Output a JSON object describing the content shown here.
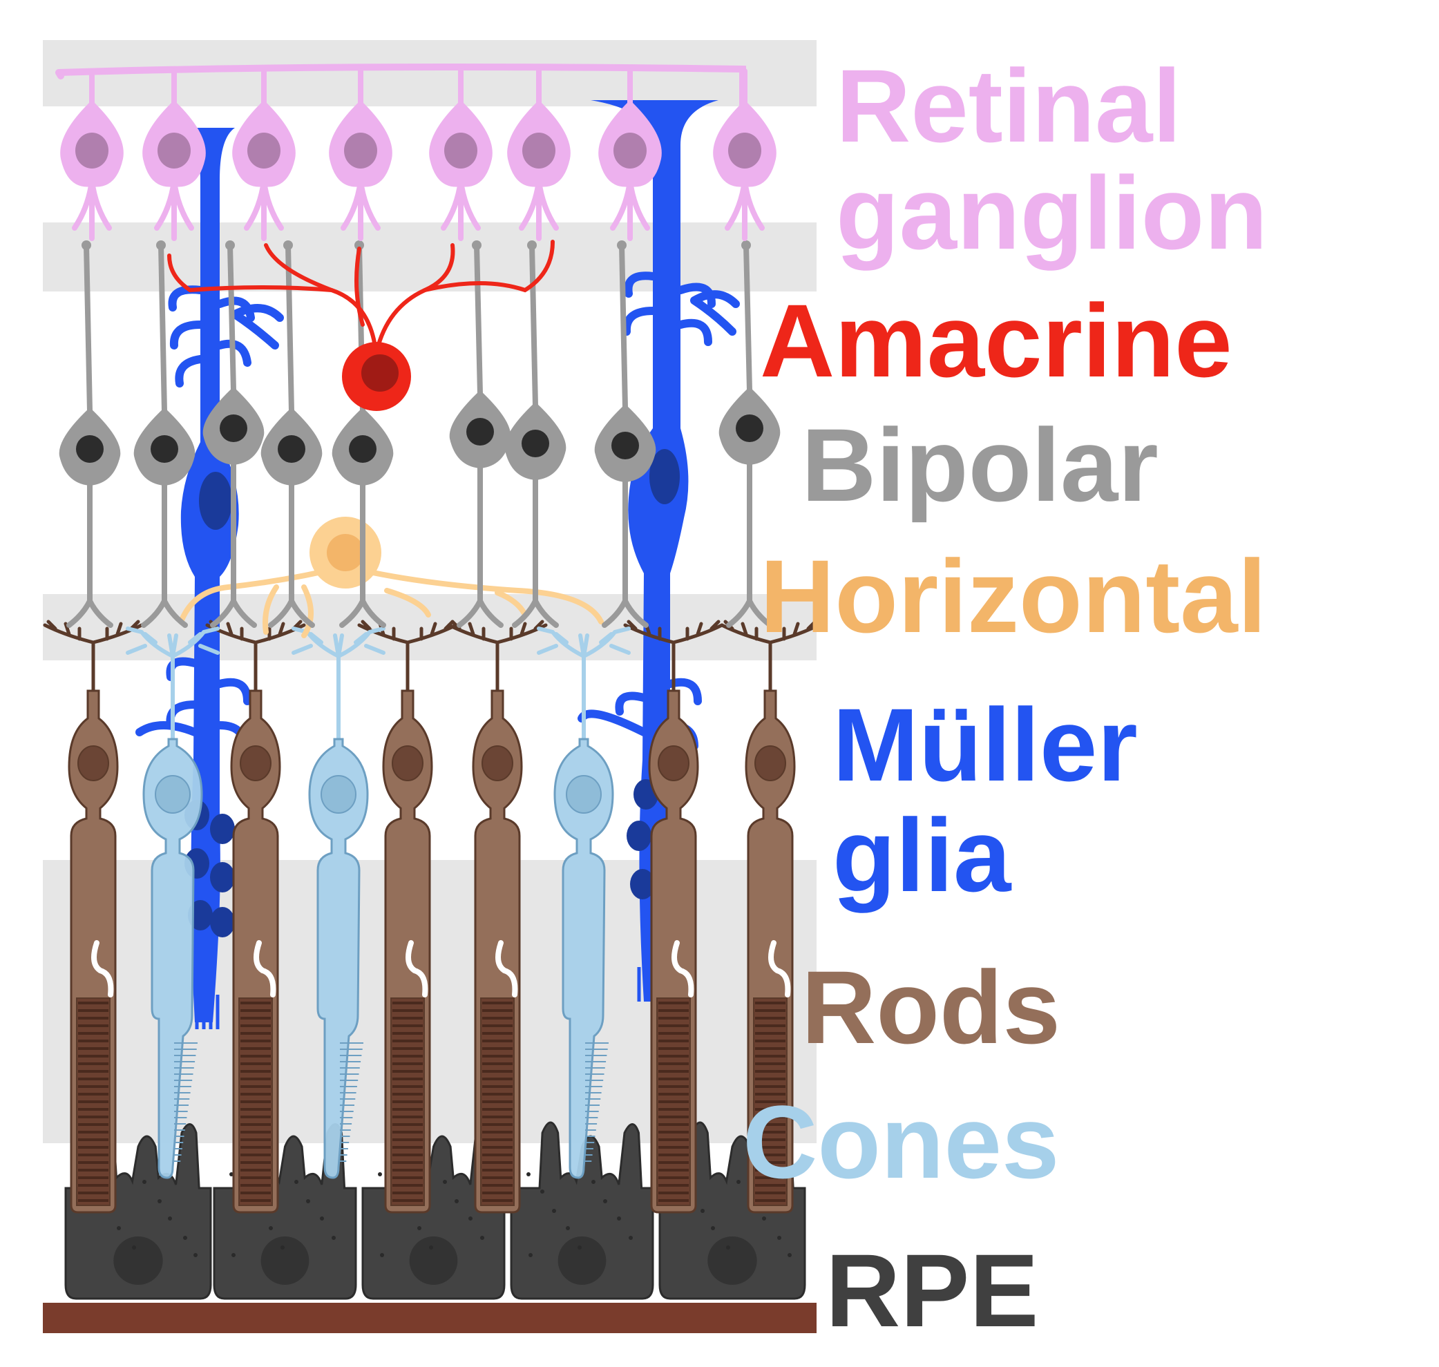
{
  "labels": {
    "retinal_line1": "Retinal",
    "retinal_line2": "ganglion",
    "amacrine": "Amacrine",
    "bipolar": "Bipolar",
    "horizontal": "Horizontal",
    "muller_line1": "Müller",
    "muller_line2": "glia",
    "rods": "Rods",
    "cones": "Cones",
    "rpe": "RPE"
  },
  "colors": {
    "retinal_ganglion": "#edb1ee",
    "ganglion_nucleus": "#b07fae",
    "amacrine": "#ee2619",
    "amacrine_nucleus": "#a01b15",
    "bipolar": "#9a9a9a",
    "bipolar_nucleus": "#2c2c2c",
    "horizontal": "#fcd192",
    "horizontal_text": "#f3b569",
    "muller_glia": "#2354f1",
    "muller_nucleus": "#1a3a9a",
    "rods": "#946f5a",
    "rod_outline": "#5a3a2a",
    "rod_nucleus": "#6b4535",
    "cones": "#a6d0ea",
    "cone_outline": "#6d9fc2",
    "rpe": "#434343",
    "rpe_text": "#404040",
    "membrane": "#7a3c2c",
    "layer_band": "#e6e6e6"
  },
  "icons": {
    "ganglion": "ganglion-cell-icon",
    "amacrine": "amacrine-cell-icon",
    "bipolar": "bipolar-cell-icon",
    "horizontal": "horizontal-cell-icon",
    "muller": "muller-glia-icon",
    "rod": "rod-cell-icon",
    "cone": "cone-cell-icon",
    "rpe": "rpe-cell-icon"
  }
}
